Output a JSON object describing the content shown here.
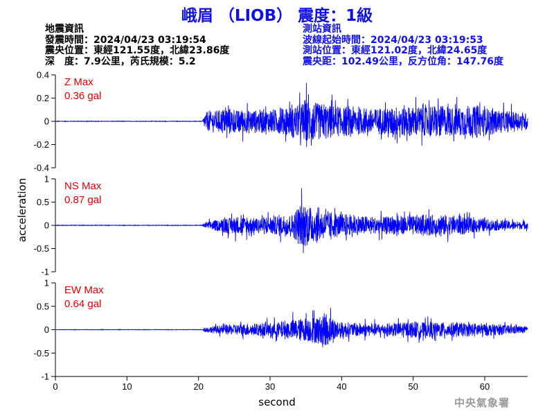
{
  "title": "峨眉 （LIOB） 震度：1級",
  "quake_info": {
    "heading": "地震資訊",
    "origin_time": "發震時間：2024/04/23 03:19:54",
    "epicenter": "震央位置：東經121.55度，北緯23.86度",
    "depth_magnitude": "深　度：7.9公里，芮氏規模：5.2"
  },
  "station_info": {
    "heading": "測站資訊",
    "wave_start": "波線起始時間：2024/04/23 03:19:53",
    "location": "測站位置：東經121.02度，北緯24.65度",
    "distance": "震央距：102.49公里，反方位角：147.76度"
  },
  "agency": "中央氣象署",
  "colors": {
    "trace": "#0000ff",
    "title": "#1010e0",
    "max_label": "#e00000"
  },
  "chart_data": {
    "type": "line",
    "xlabel": "second",
    "ylabel": "acceleration",
    "xlim": [
      0,
      66
    ],
    "x_ticks": [
      0,
      10,
      20,
      30,
      40,
      50,
      60
    ],
    "panels": [
      {
        "name": "Z",
        "max_label": "Z Max",
        "max_value": "0.36 gal",
        "ylim": [
          -0.4,
          0.4
        ],
        "y_ticks": [
          0.4,
          0.2,
          0,
          -0.2,
          -0.4
        ],
        "y_tick_labels": [
          "0.4",
          "0.2",
          "0",
          "-0.2",
          "-0.4"
        ],
        "envelope": [
          [
            0,
            0.004
          ],
          [
            20.5,
            0.004
          ],
          [
            21,
            0.15
          ],
          [
            24,
            0.2
          ],
          [
            28,
            0.17
          ],
          [
            33,
            0.21
          ],
          [
            35,
            0.34
          ],
          [
            39,
            0.23
          ],
          [
            45,
            0.2
          ],
          [
            50,
            0.24
          ],
          [
            53,
            0.25
          ],
          [
            56,
            0.22
          ],
          [
            58,
            0.26
          ],
          [
            62,
            0.17
          ],
          [
            66,
            0.14
          ]
        ]
      },
      {
        "name": "NS",
        "max_label": "NS Max",
        "max_value": "0.87 gal",
        "ylim": [
          -1,
          1
        ],
        "y_ticks": [
          1,
          0.5,
          0,
          -0.5,
          -1
        ],
        "y_tick_labels": [
          "1",
          "0.5",
          "0",
          "-0.5",
          "-1"
        ],
        "envelope": [
          [
            0,
            0.01
          ],
          [
            20.5,
            0.01
          ],
          [
            21,
            0.12
          ],
          [
            25,
            0.35
          ],
          [
            28,
            0.3
          ],
          [
            33,
            0.45
          ],
          [
            34.5,
            0.85
          ],
          [
            37,
            0.6
          ],
          [
            39,
            0.45
          ],
          [
            45,
            0.32
          ],
          [
            50,
            0.38
          ],
          [
            55,
            0.4
          ],
          [
            60,
            0.25
          ],
          [
            66,
            0.13
          ]
        ]
      },
      {
        "name": "EW",
        "max_label": "EW Max",
        "max_value": "0.64 gal",
        "ylim": [
          -1,
          1
        ],
        "y_ticks": [
          1,
          0.5,
          0,
          -0.5,
          -1
        ],
        "y_tick_labels": [
          "1",
          "0.5",
          "0",
          "-0.5",
          "-1"
        ],
        "envelope": [
          [
            0,
            0.008
          ],
          [
            20.5,
            0.008
          ],
          [
            21,
            0.1
          ],
          [
            25,
            0.22
          ],
          [
            30,
            0.25
          ],
          [
            34,
            0.42
          ],
          [
            38,
            0.6
          ],
          [
            40,
            0.3
          ],
          [
            45,
            0.22
          ],
          [
            50,
            0.3
          ],
          [
            55,
            0.28
          ],
          [
            60,
            0.25
          ],
          [
            66,
            0.12
          ]
        ]
      }
    ]
  }
}
